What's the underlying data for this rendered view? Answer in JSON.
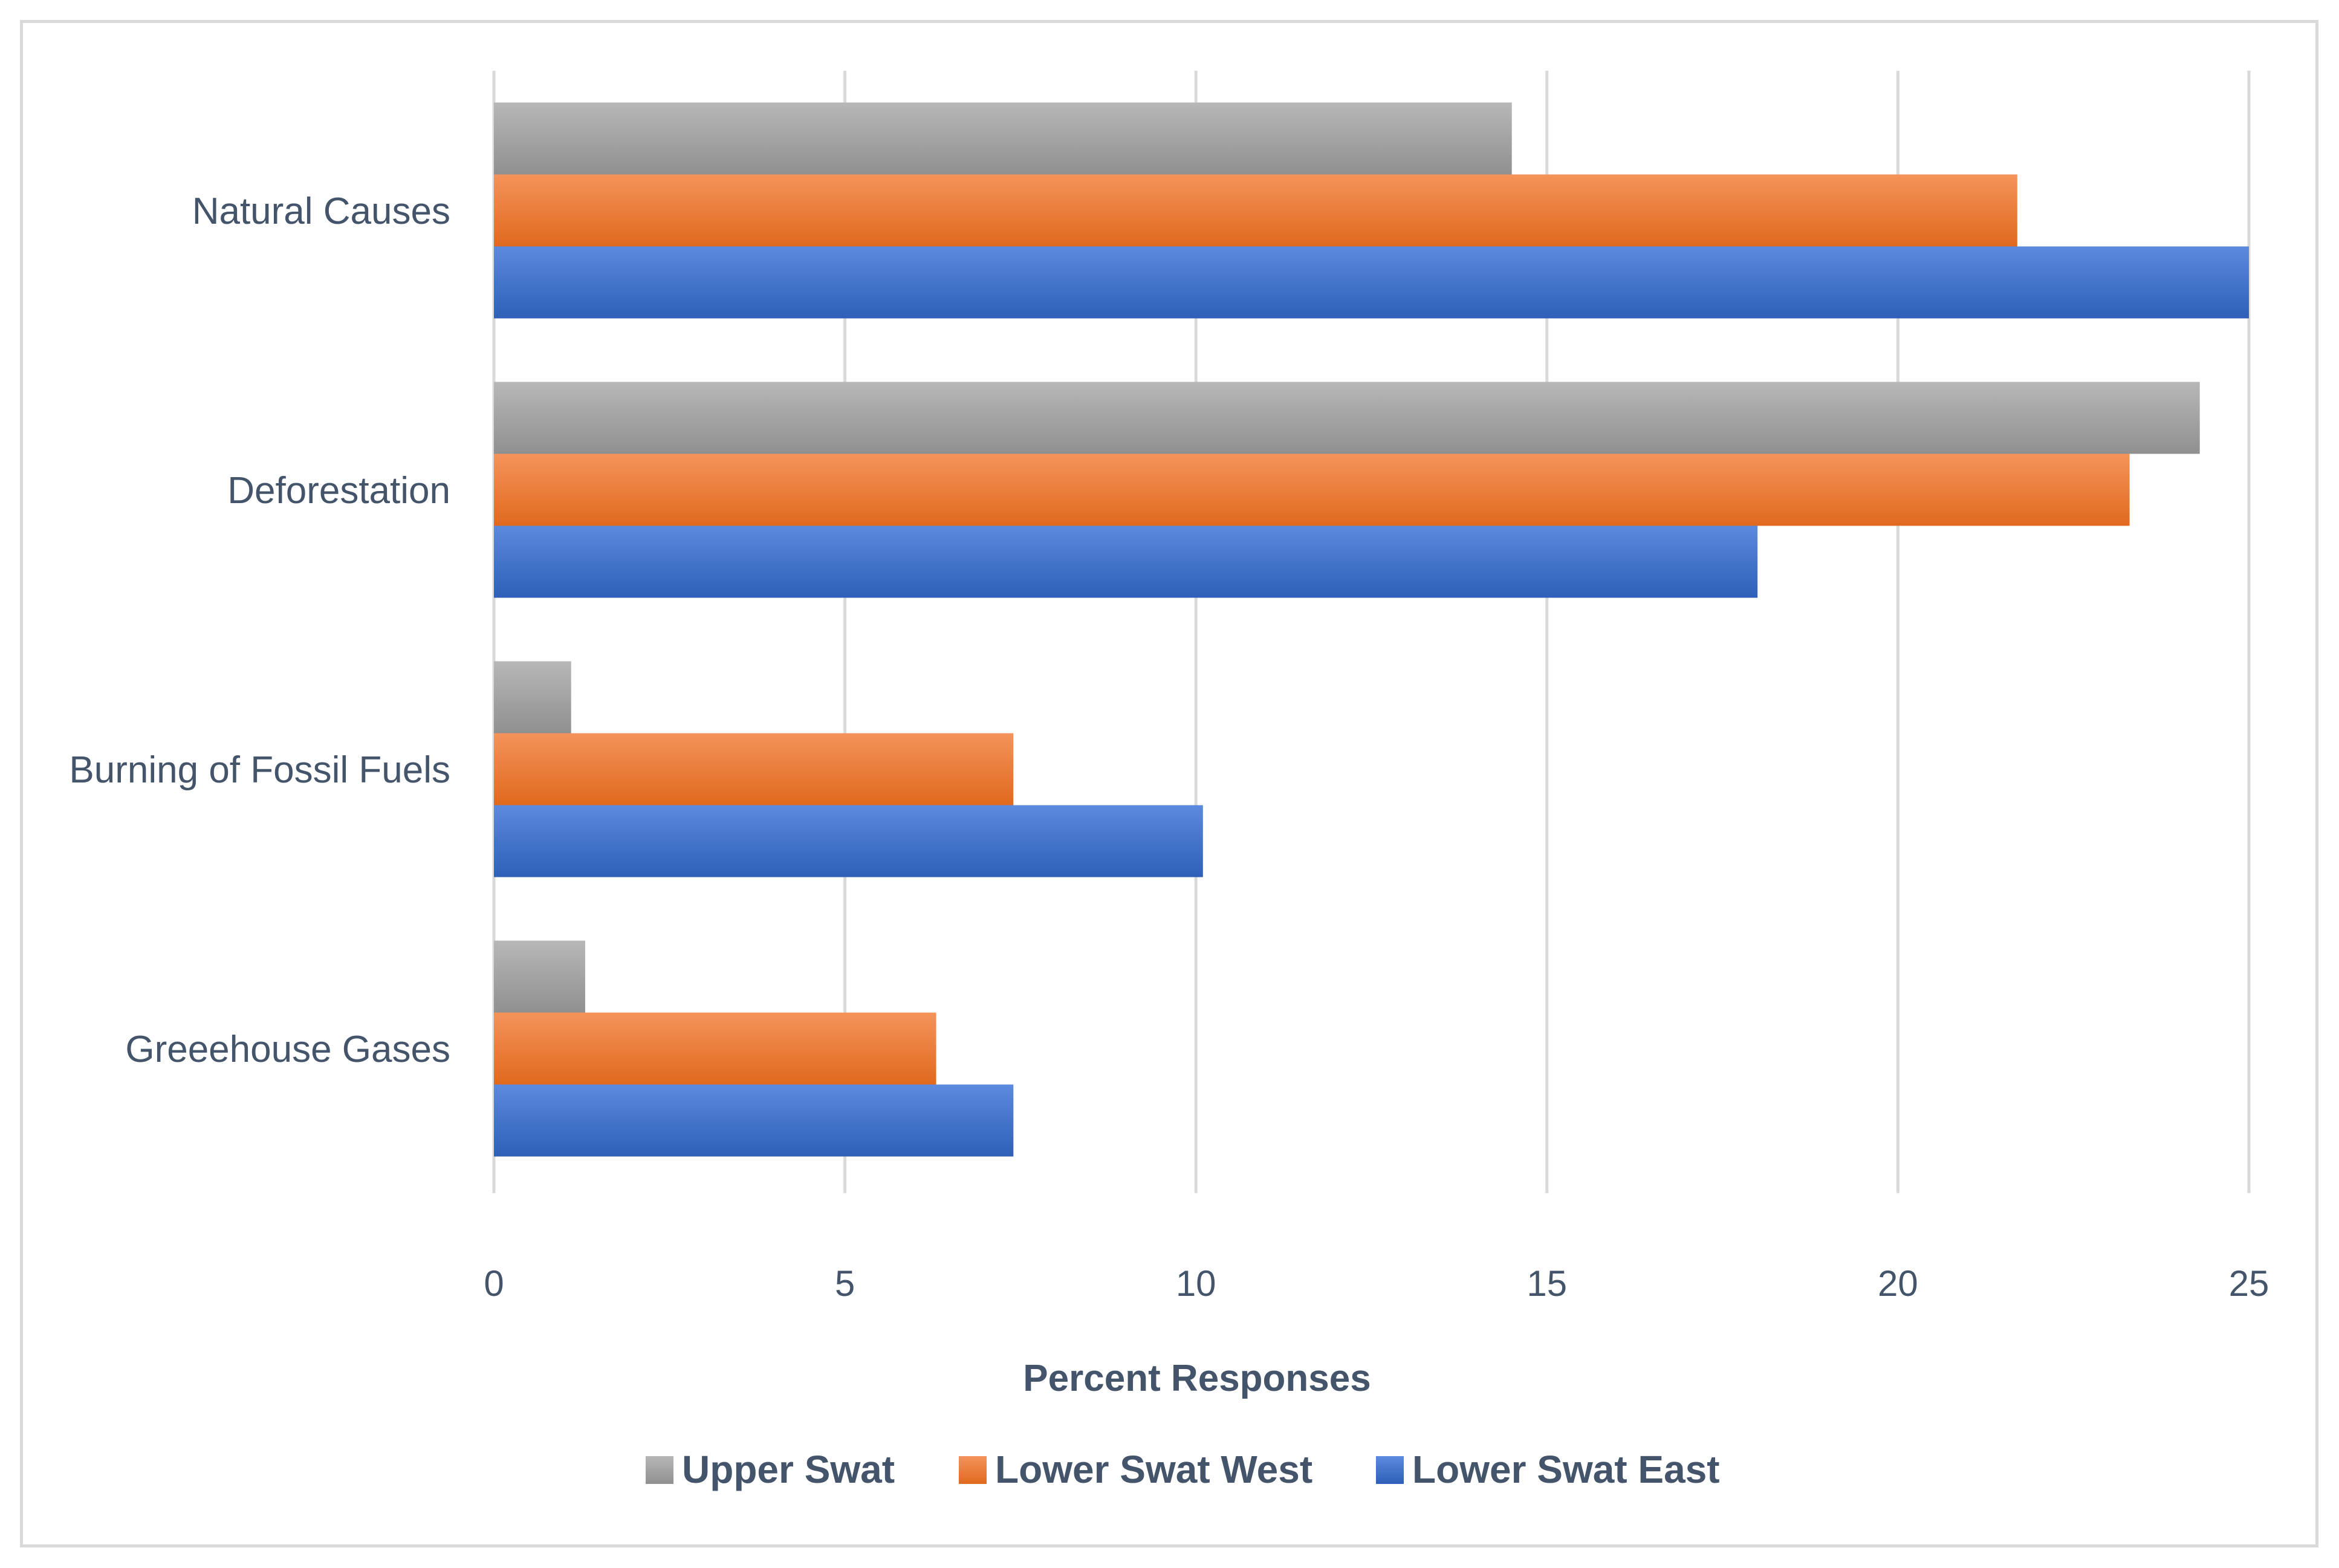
{
  "chart_data": {
    "type": "bar",
    "orientation": "horizontal",
    "title": "",
    "xlabel": "Percent Responses",
    "ylabel": "",
    "xlim": [
      0,
      25
    ],
    "ticks": [
      "0",
      "5",
      "10",
      "15",
      "20",
      "25"
    ],
    "tick_values": [
      0,
      5,
      10,
      15,
      20,
      25
    ],
    "grid": true,
    "legend_position": "bottom",
    "categories": [
      "Natural Causes",
      "Deforestation",
      "Burning of Fossil Fuels",
      "Greeehouse Gases"
    ],
    "series": [
      {
        "name": "Upper Swat",
        "color": "#a5a5a5",
        "values": [
          14.5,
          24.3,
          1.1,
          1.3
        ]
      },
      {
        "name": "Lower Swat West",
        "color": "#ed7d31",
        "values": [
          21.7,
          23.3,
          7.4,
          6.3
        ]
      },
      {
        "name": "Lower Swat East",
        "color": "#4472c4",
        "values": [
          25.0,
          18.0,
          10.1,
          7.4
        ]
      }
    ]
  }
}
